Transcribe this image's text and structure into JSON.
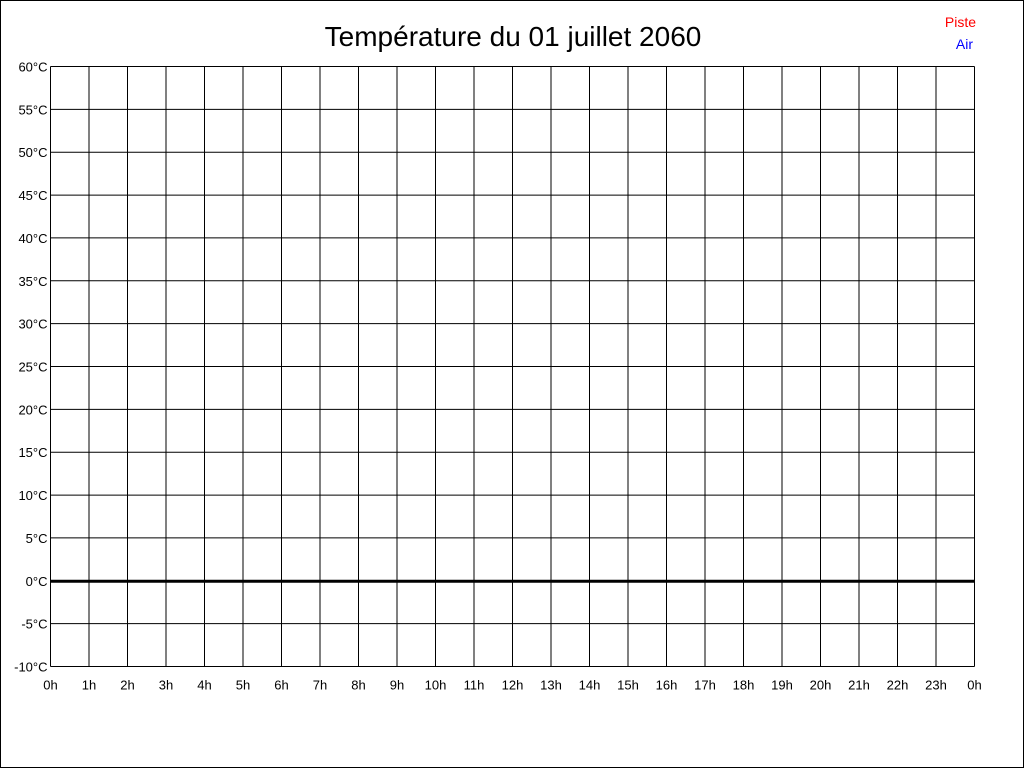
{
  "chart_data": {
    "type": "line",
    "title": "Température du 01 juillet 2060",
    "xlabel": "",
    "ylabel": "",
    "x_ticks": [
      "0h",
      "1h",
      "2h",
      "3h",
      "4h",
      "5h",
      "6h",
      "7h",
      "8h",
      "9h",
      "10h",
      "11h",
      "12h",
      "13h",
      "14h",
      "15h",
      "16h",
      "17h",
      "18h",
      "19h",
      "20h",
      "21h",
      "22h",
      "23h",
      "0h"
    ],
    "y_ticks": [
      "60°C",
      "55°C",
      "50°C",
      "45°C",
      "40°C",
      "35°C",
      "30°C",
      "25°C",
      "20°C",
      "15°C",
      "10°C",
      "5°C",
      "0°C",
      "-5°C",
      "-10°C"
    ],
    "ylim": [
      -10,
      60
    ],
    "y_step": 5,
    "xlim": [
      0,
      24
    ],
    "grid": true,
    "legend_position": "top-right",
    "series": [
      {
        "name": "Piste",
        "color": "#ff0000",
        "values": []
      },
      {
        "name": "Air",
        "color": "#0000ff",
        "values": []
      }
    ]
  }
}
